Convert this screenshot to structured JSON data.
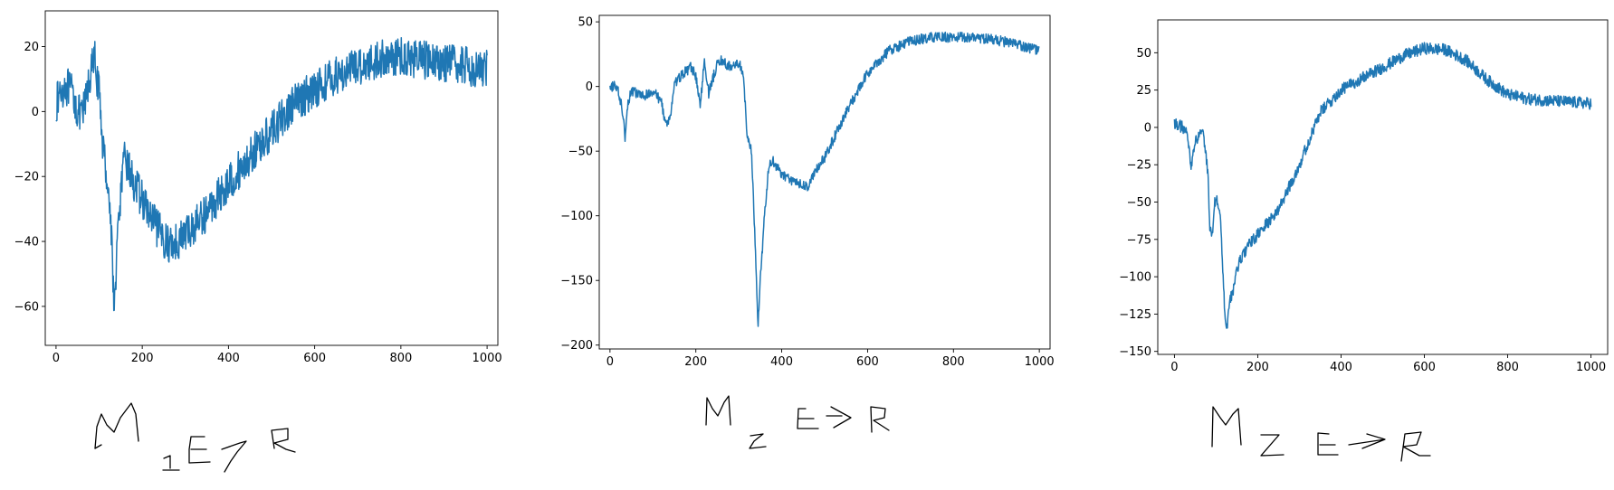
{
  "colors": {
    "line": "#1f77b4",
    "axis": "#000000",
    "background": "#ffffff"
  },
  "chart_data": [
    {
      "type": "line",
      "title": "",
      "xlabel": "",
      "ylabel": "",
      "grid": false,
      "legend": "none",
      "xlim": [
        -25,
        1025
      ],
      "ylim": [
        -72,
        31
      ],
      "xticks": [
        0,
        200,
        400,
        600,
        800,
        1000
      ],
      "xtick_labels": [
        "0",
        "200",
        "400",
        "600",
        "800",
        "1000"
      ],
      "yticks": [
        -60,
        -40,
        -20,
        0,
        20
      ],
      "ytick_labels": [
        "−60",
        "−40",
        "−20",
        "0",
        "20"
      ],
      "noise": 6,
      "series": [
        {
          "x": [
            0,
            10,
            20,
            30,
            40,
            50,
            60,
            70,
            80,
            90,
            100,
            110,
            120,
            130,
            135,
            140,
            150,
            160,
            170,
            180,
            200,
            220,
            240,
            260,
            280,
            300,
            350,
            400,
            450,
            500,
            550,
            600,
            650,
            700,
            750,
            800,
            850,
            900,
            950,
            1000
          ],
          "y": [
            2,
            6,
            8,
            7,
            5,
            0,
            -2,
            4,
            12,
            16,
            5,
            -12,
            -22,
            -40,
            -64,
            -45,
            -25,
            -14,
            -18,
            -22,
            -27,
            -33,
            -37,
            -41,
            -40,
            -38,
            -31,
            -22,
            -14,
            -6,
            2,
            7,
            11,
            14,
            16,
            17,
            16,
            15,
            14,
            13
          ]
        }
      ]
    },
    {
      "type": "line",
      "title": "",
      "xlabel": "",
      "ylabel": "",
      "grid": false,
      "legend": "none",
      "xlim": [
        -25,
        1025
      ],
      "ylim": [
        -203,
        55
      ],
      "xticks": [
        0,
        200,
        400,
        600,
        800,
        1000
      ],
      "xtick_labels": [
        "0",
        "200",
        "400",
        "600",
        "800",
        "1000"
      ],
      "yticks": [
        -200,
        -150,
        -100,
        -50,
        0,
        50
      ],
      "ytick_labels": [
        "−200",
        "−150",
        "−100",
        "−50",
        "0",
        "50"
      ],
      "noise": 4,
      "series": [
        {
          "x": [
            0,
            10,
            20,
            30,
            35,
            40,
            50,
            60,
            80,
            100,
            120,
            130,
            140,
            150,
            170,
            190,
            200,
            210,
            220,
            230,
            250,
            260,
            280,
            300,
            310,
            320,
            330,
            340,
            345,
            350,
            360,
            370,
            380,
            400,
            420,
            440,
            460,
            480,
            500,
            550,
            600,
            650,
            700,
            750,
            800,
            850,
            900,
            950,
            1000
          ],
          "y": [
            -3,
            2,
            -5,
            -20,
            -40,
            -15,
            -3,
            -5,
            -8,
            -3,
            -12,
            -30,
            -25,
            2,
            10,
            15,
            8,
            -15,
            20,
            -5,
            18,
            20,
            15,
            18,
            10,
            -40,
            -50,
            -140,
            -185,
            -150,
            -100,
            -62,
            -58,
            -68,
            -72,
            -75,
            -78,
            -65,
            -55,
            -20,
            10,
            28,
            35,
            38,
            38,
            38,
            36,
            32,
            28
          ]
        }
      ]
    },
    {
      "type": "line",
      "title": "",
      "xlabel": "",
      "ylabel": "",
      "grid": false,
      "legend": "none",
      "xlim": [
        -40,
        1040
      ],
      "ylim": [
        -152,
        72
      ],
      "xticks": [
        0,
        200,
        400,
        600,
        800,
        1000
      ],
      "xtick_labels": [
        "0",
        "200",
        "400",
        "600",
        "800",
        "1000"
      ],
      "yticks": [
        -150,
        -125,
        -100,
        -75,
        -50,
        -25,
        0,
        25,
        50
      ],
      "ytick_labels": [
        "−150",
        "−125",
        "−100",
        "−75",
        "−50",
        "−25",
        "0",
        "25",
        "50"
      ],
      "noise": 4,
      "series": [
        {
          "x": [
            0,
            20,
            30,
            40,
            50,
            60,
            70,
            80,
            85,
            90,
            95,
            100,
            110,
            115,
            120,
            125,
            130,
            140,
            150,
            160,
            180,
            200,
            250,
            300,
            350,
            400,
            450,
            500,
            550,
            600,
            650,
            700,
            750,
            800,
            850,
            900,
            950,
            1000
          ],
          "y": [
            3,
            0,
            -5,
            -25,
            -10,
            -5,
            -5,
            -30,
            -65,
            -75,
            -55,
            -45,
            -60,
            -90,
            -118,
            -138,
            -120,
            -110,
            -95,
            -88,
            -78,
            -72,
            -55,
            -25,
            10,
            25,
            33,
            40,
            48,
            53,
            52,
            45,
            32,
            22,
            19,
            18,
            17,
            16
          ]
        }
      ]
    }
  ]
}
